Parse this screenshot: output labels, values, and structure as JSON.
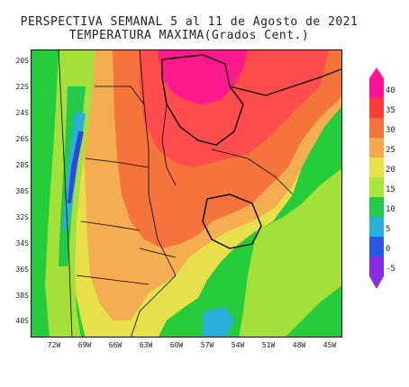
{
  "title": {
    "line1": "PERSPECTIVA SEMANAL  5 al 11 de Agosto de 2021",
    "line2": "TEMPERATURA MAXIMA(Grados Cent.)"
  },
  "axes": {
    "lat_labels": [
      "20S",
      "22S",
      "24S",
      "26S",
      "28S",
      "30S",
      "32S",
      "34S",
      "36S",
      "38S",
      "40S"
    ],
    "lon_labels": [
      "72W",
      "69W",
      "66W",
      "63W",
      "60W",
      "57W",
      "54W",
      "51W",
      "48W",
      "45W"
    ]
  },
  "colorbar": {
    "labels": [
      "40",
      "35",
      "30",
      "25",
      "20",
      "15",
      "10",
      "5",
      "0",
      "-5"
    ],
    "colors": [
      "#ff1493",
      "#ff3b3b",
      "#f4743b",
      "#f5a84d",
      "#e6e34a",
      "#a8e63c",
      "#22c94a",
      "#29b0d8",
      "#2f58e0",
      "#8a2be2"
    ]
  },
  "colors": {
    "ocean": "#24cc3c",
    "hot": "#f4743b",
    "very_hot": "#ff4d4d",
    "extreme": "#ff1a8c",
    "warm": "#f5ad52",
    "mild": "#e8e04a",
    "cool": "#a3e03a",
    "cold": "#22c94a",
    "very_cold": "#29b0d8",
    "freezing": "#2f48d8"
  }
}
